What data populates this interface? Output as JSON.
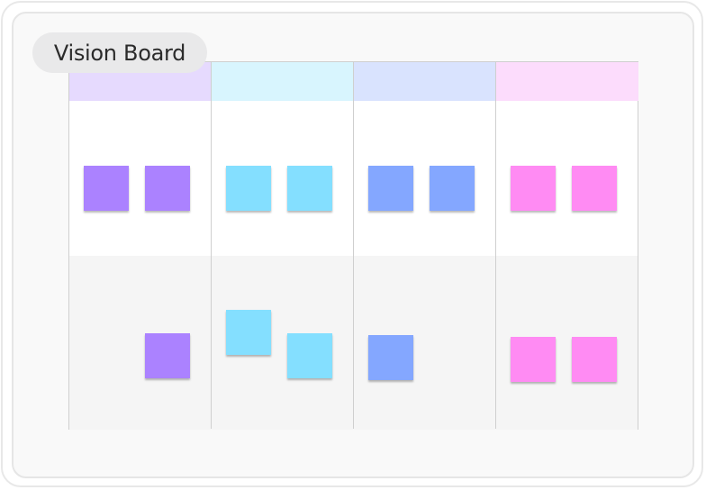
{
  "board": {
    "title": "Vision Board",
    "columns": [
      {
        "header_color": "#e6dafe",
        "sticky_color": "#ab82ff"
      },
      {
        "header_color": "#d8f5fe",
        "sticky_color": "#84dfff"
      },
      {
        "header_color": "#d9e3fe",
        "sticky_color": "#84a7ff"
      },
      {
        "header_color": "#fcdcfc",
        "sticky_color": "#ff8bf3"
      }
    ]
  }
}
